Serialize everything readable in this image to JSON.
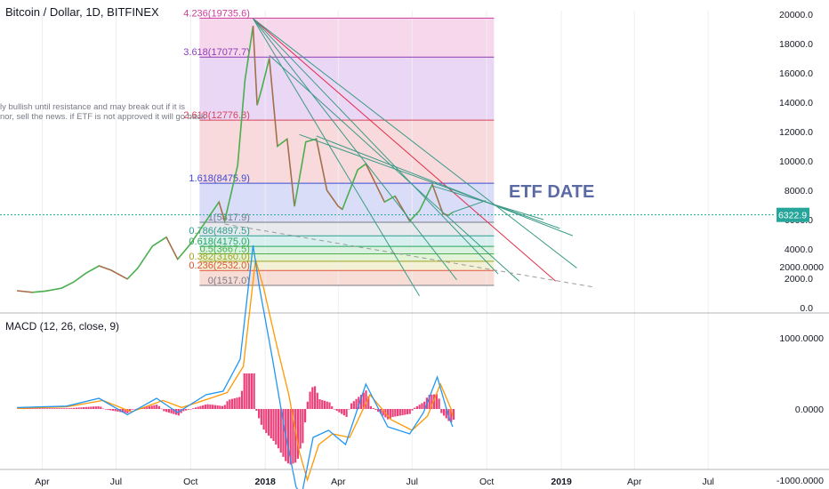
{
  "chart_data": [
    {
      "type": "line",
      "title": "Bitcoin / Dollar, 1D, BITFINEX",
      "y_axis": {
        "ticks": [
          "20000.0",
          "18000.0",
          "16000.0",
          "14000.0",
          "12000.0",
          "10000.0",
          "8000.0",
          "6000.0",
          "4000.0",
          "2000.0",
          "0.0"
        ],
        "range": [
          0,
          20500
        ]
      },
      "x_axis": {
        "ticks": [
          "Apr",
          "Jul",
          "Oct",
          "2018",
          "Apr",
          "Jul",
          "Oct",
          "2019",
          "Apr",
          "Jul"
        ]
      },
      "last_price": "6322.9",
      "fibonacci": [
        {
          "label": "4.236(19735.6)",
          "value": 19735.6,
          "color": "#cc3d9a",
          "fill": "#f5d3ea"
        },
        {
          "label": "3.618(17077.7)",
          "value": 17077.7,
          "color": "#8e3db5",
          "fill": "#e8d2f4"
        },
        {
          "label": "2.618(12776.8)",
          "value": 12776.8,
          "color": "#d8435a",
          "fill": "#f7d5d8"
        },
        {
          "label": "1.618(8475.9)",
          "value": 8475.9,
          "color": "#3b4bd1",
          "fill": "#d6d9f6"
        },
        {
          "label": "1(5817.9)",
          "value": 5817.9,
          "color": "#787b86",
          "fill": "#e6e7ea"
        },
        {
          "label": "0.786(4897.5)",
          "value": 4897.5,
          "color": "#2a9d8f",
          "fill": "#d3eeed"
        },
        {
          "label": "0.618(4175.0)",
          "value": 4175.0,
          "color": "#26a65b",
          "fill": "#d6f0db"
        },
        {
          "label": "0.5(3667.5)",
          "value": 3667.5,
          "color": "#4caf50",
          "fill": "#dff2d4"
        },
        {
          "label": "0.382(3160.0)",
          "value": 3160.0,
          "color": "#a7a21e",
          "fill": "#f1f0d2"
        },
        {
          "label": "0.236(2532.0)",
          "value": 2532.0,
          "color": "#e0523a",
          "fill": "#f7d8d2"
        },
        {
          "label": "0(1517.0)",
          "value": 1517.0,
          "color": "#787b86",
          "fill": "#ffffff"
        }
      ],
      "price_series": [
        [
          "2017-03-01",
          1150
        ],
        [
          "2017-03-20",
          1040
        ],
        [
          "2017-04-05",
          1130
        ],
        [
          "2017-04-25",
          1330
        ],
        [
          "2017-05-10",
          1750
        ],
        [
          "2017-05-25",
          2350
        ],
        [
          "2017-06-10",
          2850
        ],
        [
          "2017-06-25",
          2550
        ],
        [
          "2017-07-15",
          1950
        ],
        [
          "2017-07-28",
          2700
        ],
        [
          "2017-08-15",
          4200
        ],
        [
          "2017-09-01",
          4800
        ],
        [
          "2017-09-15",
          3300
        ],
        [
          "2017-10-01",
          4350
        ],
        [
          "2017-10-20",
          5900
        ],
        [
          "2017-11-05",
          7200
        ],
        [
          "2017-11-12",
          5900
        ],
        [
          "2017-11-28",
          9700
        ],
        [
          "2017-12-07",
          15500
        ],
        [
          "2017-12-17",
          19200
        ],
        [
          "2017-12-22",
          13800
        ],
        [
          "2017-12-28",
          15000
        ],
        [
          "2018-01-06",
          17000
        ],
        [
          "2018-01-16",
          11000
        ],
        [
          "2018-01-28",
          11500
        ],
        [
          "2018-02-06",
          6900
        ],
        [
          "2018-02-20",
          11300
        ],
        [
          "2018-03-05",
          11500
        ],
        [
          "2018-03-18",
          8000
        ],
        [
          "2018-04-01",
          6900
        ],
        [
          "2018-04-06",
          6700
        ],
        [
          "2018-04-25",
          9400
        ],
        [
          "2018-05-05",
          9800
        ],
        [
          "2018-05-28",
          7200
        ],
        [
          "2018-06-10",
          7600
        ],
        [
          "2018-06-28",
          5900
        ],
        [
          "2018-07-10",
          6600
        ],
        [
          "2018-07-26",
          8400
        ],
        [
          "2018-08-08",
          6400
        ],
        [
          "2018-08-15",
          6300
        ],
        [
          "2018-08-20",
          6500
        ]
      ],
      "trendlines": [
        {
          "from": [
            "2017-12-17",
            19700
          ],
          "to": [
            "2018-07-10",
            800
          ],
          "color": "#3a9a86"
        },
        {
          "from": [
            "2017-12-17",
            19700
          ],
          "to": [
            "2018-08-25",
            1900
          ],
          "color": "#3a9a86"
        },
        {
          "from": [
            "2017-12-17",
            19700
          ],
          "to": [
            "2018-10-15",
            2300
          ],
          "color": "#3a9a86"
        },
        {
          "from": [
            "2017-12-17",
            19700
          ],
          "to": [
            "2018-12-25",
            1800
          ],
          "color": "#e0304a"
        },
        {
          "from": [
            "2017-12-17",
            19700
          ],
          "to": [
            "2019-01-20",
            2700
          ],
          "color": "#3a9a86"
        },
        {
          "from": [
            "2018-01-06",
            17200
          ],
          "to": [
            "2018-11-10",
            1800
          ],
          "color": "#3a9a86"
        },
        {
          "from": [
            "2018-03-05",
            11700
          ],
          "to": [
            "2019-01-15",
            4900
          ],
          "color": "#3a9a86"
        },
        {
          "from": [
            "2018-02-12",
            11800
          ],
          "to": [
            "2018-12-30",
            5400
          ],
          "color": "#3a9a86"
        },
        {
          "from": [
            "2018-07-26",
            8300
          ],
          "to": [
            "2018-12-10",
            6000
          ],
          "color": "#3a9a86"
        },
        {
          "from": [
            "2018-08-20",
            6500
          ],
          "to": [
            "2018-09-30",
            7300
          ],
          "color": "#3a9a86"
        },
        {
          "from": [
            "2017-11-12",
            5700
          ],
          "to": [
            "2019-02-10",
            1400
          ],
          "color": "#9a9a9a",
          "dashed": true
        }
      ]
    },
    {
      "type": "line",
      "title": "MACD (12, 26, close, 9)",
      "y_axis": {
        "ticks": [
          "2000.0000",
          "1000.0000",
          "0.0000",
          "-1000.0000"
        ],
        "range": [
          -1400,
          2600
        ]
      },
      "macd_series": [
        [
          "2017-03-01",
          20
        ],
        [
          "2017-05-01",
          40
        ],
        [
          "2017-06-10",
          150
        ],
        [
          "2017-07-15",
          -80
        ],
        [
          "2017-08-20",
          150
        ],
        [
          "2017-09-15",
          -50
        ],
        [
          "2017-10-20",
          200
        ],
        [
          "2017-11-10",
          250
        ],
        [
          "2017-12-01",
          700
        ],
        [
          "2017-12-17",
          2300
        ],
        [
          "2017-12-25",
          1700
        ],
        [
          "2018-01-10",
          700
        ],
        [
          "2018-01-25",
          -300
        ],
        [
          "2018-02-08",
          -1100
        ],
        [
          "2018-02-15",
          -1200
        ],
        [
          "2018-03-01",
          -400
        ],
        [
          "2018-03-20",
          -300
        ],
        [
          "2018-04-10",
          -500
        ],
        [
          "2018-05-05",
          350
        ],
        [
          "2018-06-01",
          -250
        ],
        [
          "2018-06-28",
          -350
        ],
        [
          "2018-07-15",
          -50
        ],
        [
          "2018-08-01",
          450
        ],
        [
          "2018-08-15",
          -100
        ],
        [
          "2018-08-20",
          -250
        ]
      ],
      "signal_series": [
        [
          "2017-03-01",
          10
        ],
        [
          "2017-05-01",
          30
        ],
        [
          "2017-06-15",
          120
        ],
        [
          "2017-07-20",
          -40
        ],
        [
          "2017-08-28",
          120
        ],
        [
          "2017-09-20",
          20
        ],
        [
          "2017-10-25",
          150
        ],
        [
          "2017-11-15",
          230
        ],
        [
          "2017-12-05",
          600
        ],
        [
          "2017-12-20",
          2100
        ],
        [
          "2017-12-30",
          1700
        ],
        [
          "2018-01-15",
          900
        ],
        [
          "2018-01-30",
          200
        ],
        [
          "2018-02-12",
          -600
        ],
        [
          "2018-02-22",
          -1000
        ],
        [
          "2018-03-08",
          -500
        ],
        [
          "2018-03-25",
          -350
        ],
        [
          "2018-04-15",
          -400
        ],
        [
          "2018-05-10",
          200
        ],
        [
          "2018-06-05",
          -150
        ],
        [
          "2018-07-01",
          -300
        ],
        [
          "2018-07-20",
          -100
        ],
        [
          "2018-08-05",
          350
        ],
        [
          "2018-08-18",
          0
        ],
        [
          "2018-08-20",
          -100
        ]
      ],
      "macd_color": "#2196f3",
      "signal_color": "#ff9800",
      "histogram_up_color": "#e91e63",
      "histogram_down_color": "#e91e63"
    }
  ],
  "annotations": {
    "note_line1": "ly bullish until resistance and may break out if it is",
    "note_line2": "nor, sell the news. if ETF is not approved it will go back",
    "etf_label": "ETF DATE"
  },
  "colors": {
    "price_line": "#4caf50",
    "price_down": "#e04a4a",
    "price_tag_bg": "#26a69a",
    "grid": "#eeeeee"
  }
}
